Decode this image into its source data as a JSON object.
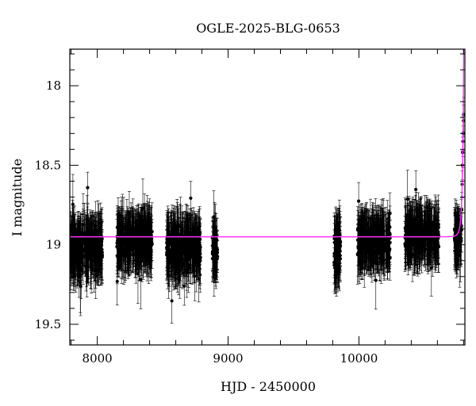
{
  "chart_data": {
    "type": "scatter",
    "title": "OGLE-2025-BLG-0653",
    "xlabel": "HJD - 2450000",
    "ylabel": "I magnitude",
    "xlim": [
      7790,
      10810
    ],
    "ylim": [
      19.63,
      17.77
    ],
    "y_inverted": true,
    "grid": false,
    "xticks": [
      8000,
      9000,
      10000
    ],
    "xtick_labels": [
      "8000",
      "9000",
      "10000"
    ],
    "yticks": [
      18,
      18.5,
      19,
      19.5
    ],
    "ytick_labels": [
      "18",
      "18.5",
      "19",
      "19.5"
    ],
    "point_color": "#000000",
    "model_color": "#ff33ff",
    "observing_seasons": [
      {
        "x_range": [
          7795,
          8040
        ],
        "y_mean": 19.01,
        "y_spread": 0.1,
        "n": 320
      },
      {
        "x_range": [
          8150,
          8420
        ],
        "y_mean": 18.98,
        "y_spread": 0.09,
        "n": 340
      },
      {
        "x_range": [
          8530,
          8790
        ],
        "y_mean": 19.02,
        "y_spread": 0.1,
        "n": 340
      },
      {
        "x_range": [
          8880,
          8920
        ],
        "y_mean": 19.03,
        "y_spread": 0.08,
        "n": 60
      },
      {
        "x_range": [
          9810,
          9860
        ],
        "y_mean": 19.03,
        "y_spread": 0.11,
        "n": 110
      },
      {
        "x_range": [
          9990,
          10240
        ],
        "y_mean": 18.98,
        "y_spread": 0.08,
        "n": 300
      },
      {
        "x_range": [
          10350,
          10610
        ],
        "y_mean": 18.94,
        "y_spread": 0.08,
        "n": 300
      },
      {
        "x_range": [
          10730,
          10785
        ],
        "y_mean": 18.96,
        "y_spread": 0.09,
        "n": 70
      }
    ],
    "rising_points": [
      {
        "x": 10786,
        "y": 18.78
      },
      {
        "x": 10789,
        "y": 18.62
      },
      {
        "x": 10791,
        "y": 18.5
      },
      {
        "x": 10793,
        "y": 18.42
      },
      {
        "x": 10795,
        "y": 18.35
      },
      {
        "x": 10797,
        "y": 18.3
      },
      {
        "x": 10799,
        "y": 18.22
      },
      {
        "x": 10800,
        "y": 18.18
      }
    ],
    "model_curve": {
      "baseline": 18.95,
      "peak_time": 10807,
      "tE": 18,
      "u0": 0.03
    }
  }
}
